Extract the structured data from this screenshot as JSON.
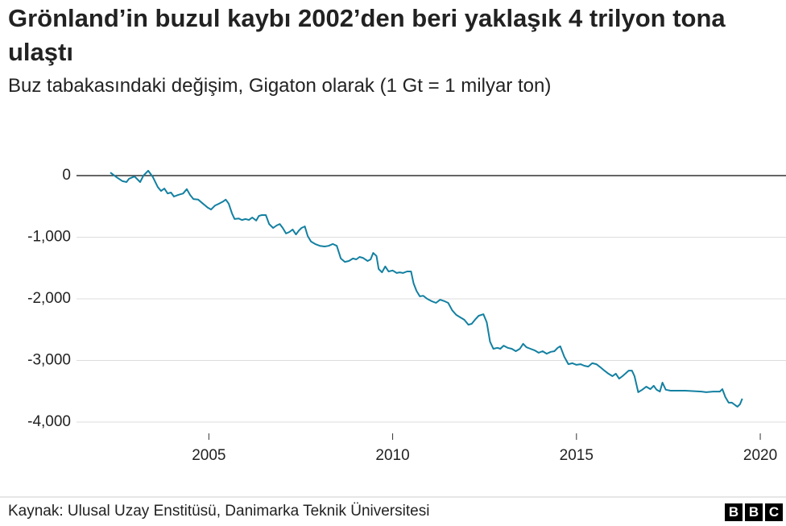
{
  "chart_data": {
    "type": "line",
    "title": "Grönland’in buzul kaybı 2002’den beri yaklaşık 4 trilyon tona ulaştı",
    "subtitle": "Buz tabakasındaki değişim, Gigaton olarak (1 Gt = 1 milyar ton)",
    "source": "Kaynak: Ulusal Uzay Enstitüsü, Danimarka Teknik Üniversitesi",
    "logo": [
      "B",
      "B",
      "C"
    ],
    "color": "#1380a1",
    "xlim": [
      2001.4,
      2020.7
    ],
    "xticks": [
      2005,
      2010,
      2015,
      2020
    ],
    "ylim": [
      -4000,
      0
    ],
    "yticks": [
      0,
      {
        "value": -1000,
        "label": "-1,000"
      },
      {
        "value": -2000,
        "label": "-2,000"
      },
      {
        "value": -3000,
        "label": "-3,000"
      },
      {
        "value": -4000,
        "label": "-4,000"
      }
    ],
    "grid": true,
    "x": [
      2002.32,
      2002.5,
      2002.65,
      2002.76,
      2002.83,
      2002.98,
      2003.13,
      2003.22,
      2003.35,
      2003.48,
      2003.61,
      2003.7,
      2003.79,
      2003.88,
      2003.97,
      2004.05,
      2004.16,
      2004.3,
      2004.4,
      2004.49,
      2004.58,
      2004.71,
      2004.84,
      2004.97,
      2005.06,
      2005.17,
      2005.28,
      2005.39,
      2005.46,
      2005.54,
      2005.63,
      2005.7,
      2005.81,
      2005.9,
      2006.0,
      2006.09,
      2006.18,
      2006.29,
      2006.36,
      2006.44,
      2006.55,
      2006.64,
      2006.75,
      2006.84,
      2006.93,
      2007.01,
      2007.1,
      2007.19,
      2007.28,
      2007.37,
      2007.45,
      2007.52,
      2007.61,
      2007.69,
      2007.78,
      2007.89,
      2008.02,
      2008.15,
      2008.26,
      2008.37,
      2008.48,
      2008.59,
      2008.7,
      2008.81,
      2008.92,
      2009.01,
      2009.1,
      2009.19,
      2009.32,
      2009.4,
      2009.47,
      2009.56,
      2009.62,
      2009.71,
      2009.8,
      2009.89,
      2010.0,
      2010.11,
      2010.19,
      2010.28,
      2010.39,
      2010.5,
      2010.57,
      2010.65,
      2010.74,
      2010.83,
      2010.94,
      2011.07,
      2011.18,
      2011.29,
      2011.42,
      2011.51,
      2011.62,
      2011.73,
      2011.84,
      2011.95,
      2012.06,
      2012.15,
      2012.26,
      2012.34,
      2012.47,
      2012.56,
      2012.65,
      2012.74,
      2012.85,
      2012.93,
      2013.02,
      2013.13,
      2013.24,
      2013.35,
      2013.46,
      2013.55,
      2013.64,
      2013.75,
      2013.86,
      2013.97,
      2014.08,
      2014.19,
      2014.3,
      2014.4,
      2014.49,
      2014.56,
      2014.67,
      2014.78,
      2014.89,
      2015.0,
      2015.11,
      2015.21,
      2015.32,
      2015.43,
      2015.54,
      2015.65,
      2015.76,
      2015.87,
      2015.98,
      2016.07,
      2016.16,
      2016.25,
      2016.33,
      2016.42,
      2016.51,
      2016.58,
      2016.68,
      2016.79,
      2016.9,
      2017.01,
      2017.1,
      2017.18,
      2017.27,
      2017.34,
      2017.43,
      2017.56,
      2017.96,
      2018.4,
      2018.53,
      2018.72,
      2018.9,
      2018.97,
      2019.05,
      2019.14,
      2019.23,
      2019.32,
      2019.38,
      2019.45,
      2019.51
    ],
    "values": [
      50,
      -30,
      -90,
      -105,
      -50,
      -15,
      -105,
      0,
      80,
      -25,
      -185,
      -250,
      -210,
      -290,
      -275,
      -340,
      -315,
      -290,
      -220,
      -315,
      -380,
      -390,
      -455,
      -520,
      -550,
      -485,
      -455,
      -420,
      -390,
      -455,
      -615,
      -705,
      -695,
      -720,
      -705,
      -720,
      -680,
      -730,
      -655,
      -640,
      -640,
      -785,
      -850,
      -810,
      -785,
      -850,
      -940,
      -915,
      -875,
      -955,
      -890,
      -850,
      -825,
      -980,
      -1070,
      -1110,
      -1140,
      -1150,
      -1140,
      -1110,
      -1140,
      -1345,
      -1400,
      -1385,
      -1345,
      -1360,
      -1320,
      -1335,
      -1385,
      -1360,
      -1255,
      -1305,
      -1515,
      -1570,
      -1475,
      -1555,
      -1540,
      -1580,
      -1570,
      -1580,
      -1555,
      -1555,
      -1750,
      -1870,
      -1960,
      -1950,
      -2000,
      -2040,
      -2065,
      -2015,
      -2040,
      -2065,
      -2185,
      -2260,
      -2300,
      -2340,
      -2420,
      -2405,
      -2325,
      -2275,
      -2250,
      -2380,
      -2695,
      -2810,
      -2795,
      -2810,
      -2760,
      -2795,
      -2810,
      -2850,
      -2810,
      -2730,
      -2785,
      -2810,
      -2835,
      -2875,
      -2850,
      -2890,
      -2860,
      -2850,
      -2795,
      -2770,
      -2940,
      -3060,
      -3045,
      -3070,
      -3060,
      -3085,
      -3100,
      -3045,
      -3060,
      -3110,
      -3165,
      -3215,
      -3255,
      -3215,
      -3295,
      -3255,
      -3215,
      -3165,
      -3165,
      -3255,
      -3515,
      -3475,
      -3425,
      -3465,
      -3410,
      -3475,
      -3505,
      -3360,
      -3475,
      -3490,
      -3490,
      -3505,
      -3515,
      -3505,
      -3505,
      -3465,
      -3595,
      -3685,
      -3685,
      -3725,
      -3750,
      -3710,
      -3620
    ]
  }
}
